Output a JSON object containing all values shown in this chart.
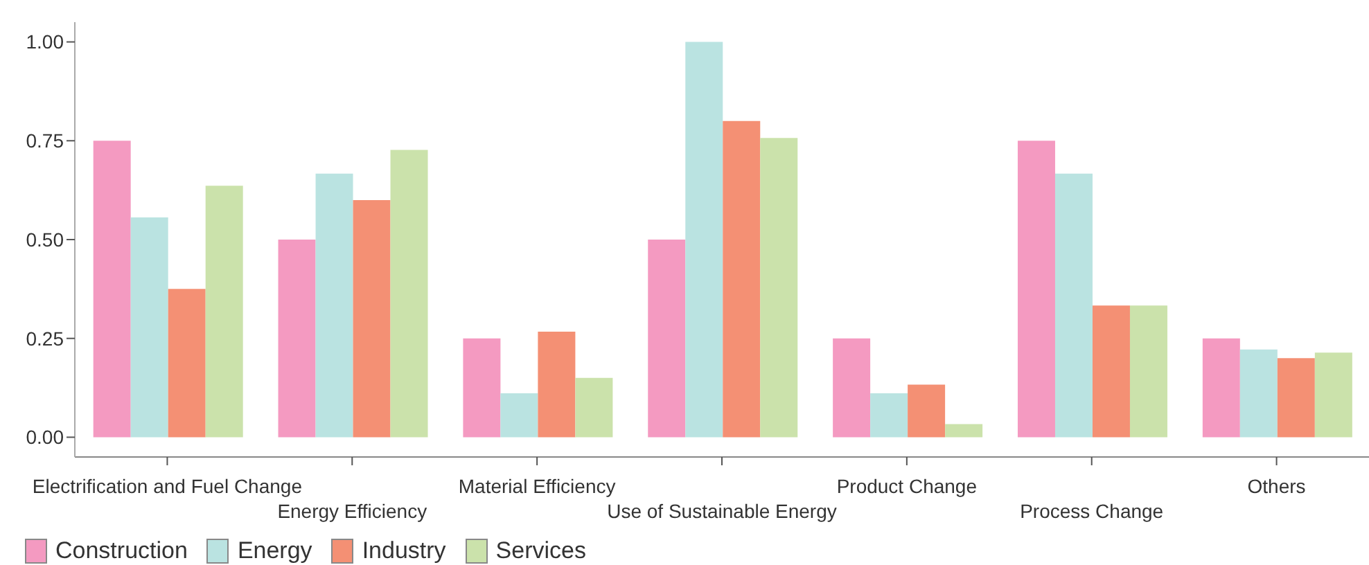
{
  "chart_data": {
    "type": "bar",
    "categories": [
      "Electrification and Fuel Change",
      "Energy Efficiency",
      "Material Efficiency",
      "Use of Sustainable Energy",
      "Product Change",
      "Process Change",
      "Others"
    ],
    "series": [
      {
        "name": "Construction",
        "color": "#f49ac1",
        "values": [
          0.75,
          0.5,
          0.25,
          0.5,
          0.25,
          0.75,
          0.25
        ]
      },
      {
        "name": "Energy",
        "color": "#bae3e1",
        "values": [
          0.556,
          0.667,
          0.111,
          1.0,
          0.111,
          0.667,
          0.222
        ]
      },
      {
        "name": "Industry",
        "color": "#f49074",
        "values": [
          0.375,
          0.6,
          0.267,
          0.8,
          0.133,
          0.333,
          0.2
        ]
      },
      {
        "name": "Services",
        "color": "#cbe2ab",
        "values": [
          0.636,
          0.727,
          0.15,
          0.757,
          0.033,
          0.333,
          0.214
        ]
      }
    ],
    "ylim": [
      -0.05,
      1.05
    ],
    "yticks": [
      {
        "value": 0,
        "label": "0.00"
      },
      {
        "value": 0.25,
        "label": "0.25"
      },
      {
        "value": 0.5,
        "label": "0.50"
      },
      {
        "value": 0.75,
        "label": "0.75"
      },
      {
        "value": 1,
        "label": "1.00"
      }
    ],
    "grid": false,
    "legend": "bottom left"
  }
}
